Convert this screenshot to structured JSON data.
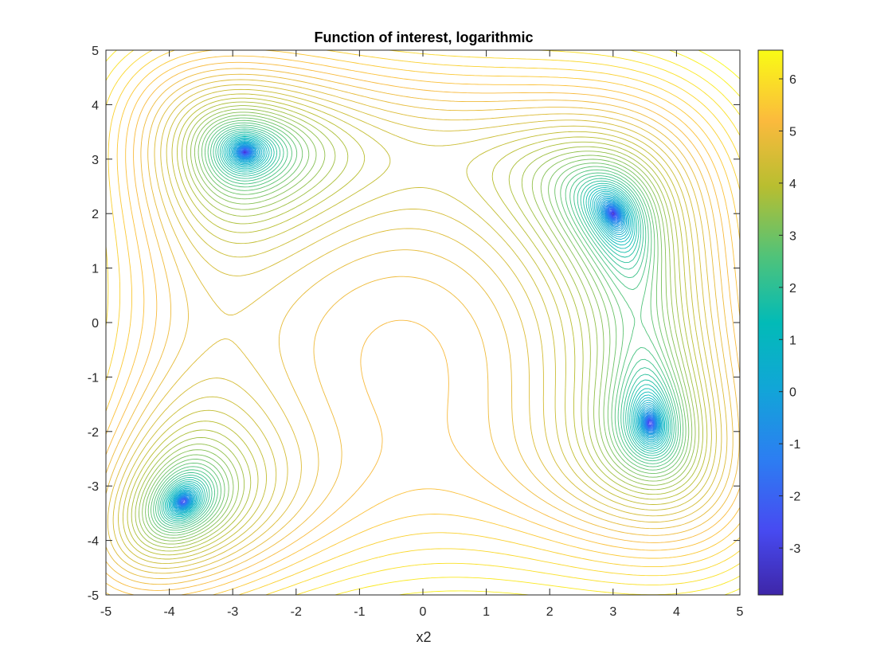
{
  "chart_data": {
    "type": "contour",
    "title": "Function of interest, logarithmic",
    "xlabel": "x2",
    "ylabel": "",
    "xlim": [
      -5,
      5
    ],
    "ylim": [
      -5,
      5
    ],
    "x_ticks": [
      -5,
      -4,
      -3,
      -2,
      -1,
      0,
      1,
      2,
      3,
      4,
      5
    ],
    "y_ticks": [
      -5,
      -4,
      -3,
      -2,
      -1,
      0,
      1,
      2,
      3,
      4,
      5
    ],
    "colorbar": {
      "colormap": "parula",
      "limits": [
        -3.9,
        6.55
      ],
      "ticks": [
        -3,
        -2,
        -1,
        0,
        1,
        2,
        3,
        4,
        5,
        6
      ]
    },
    "minima": [
      {
        "x": -2.805,
        "y": 3.131
      },
      {
        "x": 3.0,
        "y": 2.0
      },
      {
        "x": -3.779,
        "y": -3.283
      },
      {
        "x": 3.584,
        "y": -1.848
      }
    ],
    "contour_levels": {
      "min": -3.5,
      "max": 6.5,
      "count": 60
    },
    "grid": false,
    "colors": {
      "axis": "#262626",
      "background": "#ffffff",
      "low": "#3e26a8",
      "high": "#f9fb15"
    }
  }
}
